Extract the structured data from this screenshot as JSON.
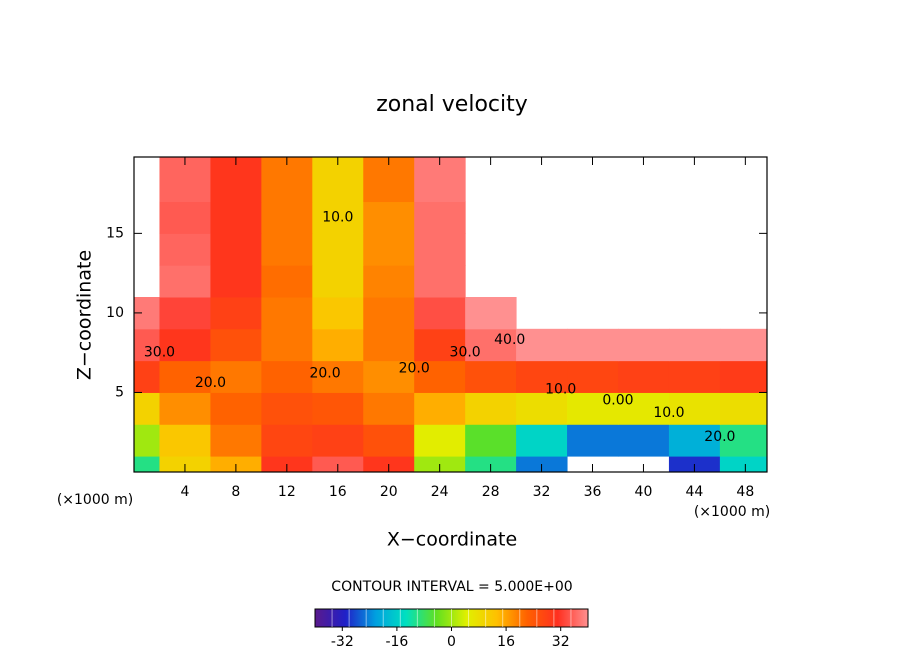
{
  "chart_data": {
    "type": "contour",
    "title": "zonal velocity",
    "xlabel": "X−coordinate",
    "ylabel": "Z−coordinate",
    "x_unit_label": "(×1000 m)",
    "x": [
      0,
      4,
      8,
      12,
      16,
      20,
      24,
      28,
      32,
      36,
      40,
      44,
      48
    ],
    "y": [
      0,
      2,
      4,
      6,
      8,
      10,
      12,
      14,
      16,
      18
    ],
    "z": [
      [
        -10,
        10,
        15,
        30,
        35,
        30,
        0,
        -10,
        -25,
        null,
        null,
        -30,
        -15
      ],
      [
        0,
        12,
        20,
        27,
        28,
        25,
        5,
        -5,
        -15,
        -25,
        -25,
        -20,
        -10
      ],
      [
        10,
        18,
        22,
        25,
        24,
        20,
        15,
        10,
        8,
        6,
        6,
        7,
        8
      ],
      [
        28,
        22,
        20,
        22,
        20,
        18,
        22,
        25,
        27,
        27,
        28,
        28,
        29
      ],
      [
        35,
        30,
        25,
        20,
        15,
        20,
        28,
        37,
        40,
        40,
        40,
        40,
        40
      ],
      [
        38,
        33,
        28,
        20,
        12,
        20,
        34,
        40,
        null,
        null,
        null,
        null,
        null
      ],
      [
        null,
        37,
        30,
        21,
        10,
        19,
        37,
        null,
        null,
        null,
        null,
        null,
        null
      ],
      [
        null,
        36,
        30,
        20,
        10,
        18,
        37,
        null,
        null,
        null,
        null,
        null,
        null
      ],
      [
        null,
        35,
        30,
        20,
        10,
        18,
        37,
        null,
        null,
        null,
        null,
        null,
        null
      ],
      [
        null,
        36,
        30,
        20,
        10,
        20,
        38,
        null,
        null,
        null,
        null,
        null,
        null
      ]
    ],
    "xlim": [
      0,
      49.7
    ],
    "ylim": [
      0,
      19.8
    ],
    "xticks": [
      4,
      8,
      12,
      16,
      20,
      24,
      28,
      32,
      36,
      40,
      44,
      48
    ],
    "yticks": [
      5,
      10,
      15
    ],
    "colormap": [
      "#5a1a8c",
      "#2020c8",
      "#00a0e0",
      "#00e0c0",
      "#60e020",
      "#e0f000",
      "#ffc000",
      "#ff6000",
      "#ff3020",
      "#ff9090"
    ],
    "contour_interval": 5,
    "colorbar": {
      "label": "CONTOUR INTERVAL = 5.000E+00",
      "lim": [
        -40,
        40
      ],
      "ticks": [
        -32,
        -16,
        0,
        16,
        32
      ]
    },
    "contour_labels": [
      {
        "text": "10.0",
        "x": 16,
        "y": 16
      },
      {
        "text": "30.0",
        "x": 2,
        "y": 7.5
      },
      {
        "text": "20.0",
        "x": 6,
        "y": 5.6
      },
      {
        "text": "20.0",
        "x": 15,
        "y": 6.2
      },
      {
        "text": "20.0",
        "x": 22,
        "y": 6.5
      },
      {
        "text": "30.0",
        "x": 26,
        "y": 7.5
      },
      {
        "text": "40.0",
        "x": 29.5,
        "y": 8.3
      },
      {
        "text": "10.0",
        "x": 33.5,
        "y": 5.2
      },
      {
        "text": "0.00",
        "x": 38,
        "y": 4.5
      },
      {
        "text": "10.0",
        "x": 42,
        "y": 3.7
      },
      {
        "text": "20.0",
        "x": 46,
        "y": 2.2
      }
    ]
  }
}
